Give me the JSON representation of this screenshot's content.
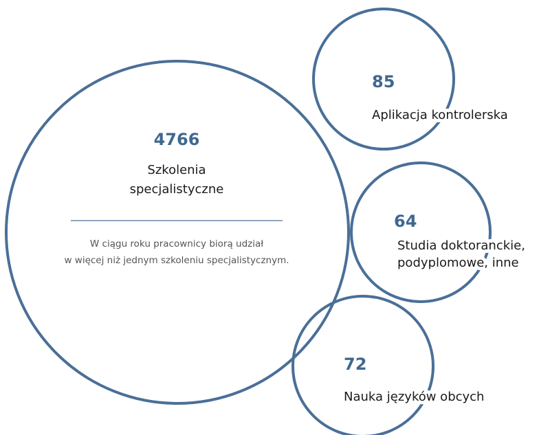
{
  "main": {
    "value": "4766",
    "label": [
      "Szkolenia",
      "specjalistyczne"
    ],
    "note": [
      "W ciągu roku pracownicy biorą udział",
      "w więcej niż jednym szkoleniu specjalistycznym."
    ]
  },
  "items": [
    {
      "value": "85",
      "label": [
        "Aplikacja kontrolerska"
      ]
    },
    {
      "value": "64",
      "label": [
        "Studia doktoranckie,",
        "podyplomowe, inne"
      ]
    },
    {
      "value": "72",
      "label": [
        "Nauka języków obcych"
      ]
    }
  ]
}
